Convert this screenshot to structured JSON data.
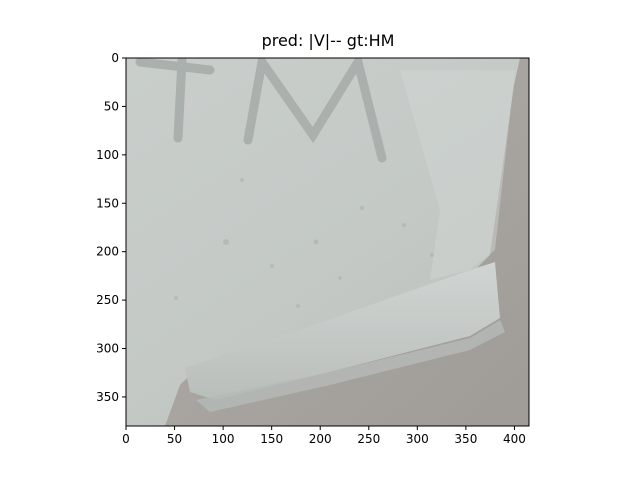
{
  "title": "pred: |V|-- gt:HM",
  "image_content": {
    "subject": "close-up of a white pill corner with debossed letters",
    "embossed_text": "HM"
  },
  "x_axis": {
    "range": [
      0,
      415
    ],
    "ticks": [
      0,
      50,
      100,
      150,
      200,
      250,
      300,
      350,
      400
    ]
  },
  "y_axis": {
    "range": [
      380,
      0
    ],
    "inverted": true,
    "ticks": [
      0,
      50,
      100,
      150,
      200,
      250,
      300,
      350
    ]
  },
  "colors": {
    "pill": "#c6cbc8",
    "background": "#a6a29e",
    "axis": "#000000"
  }
}
